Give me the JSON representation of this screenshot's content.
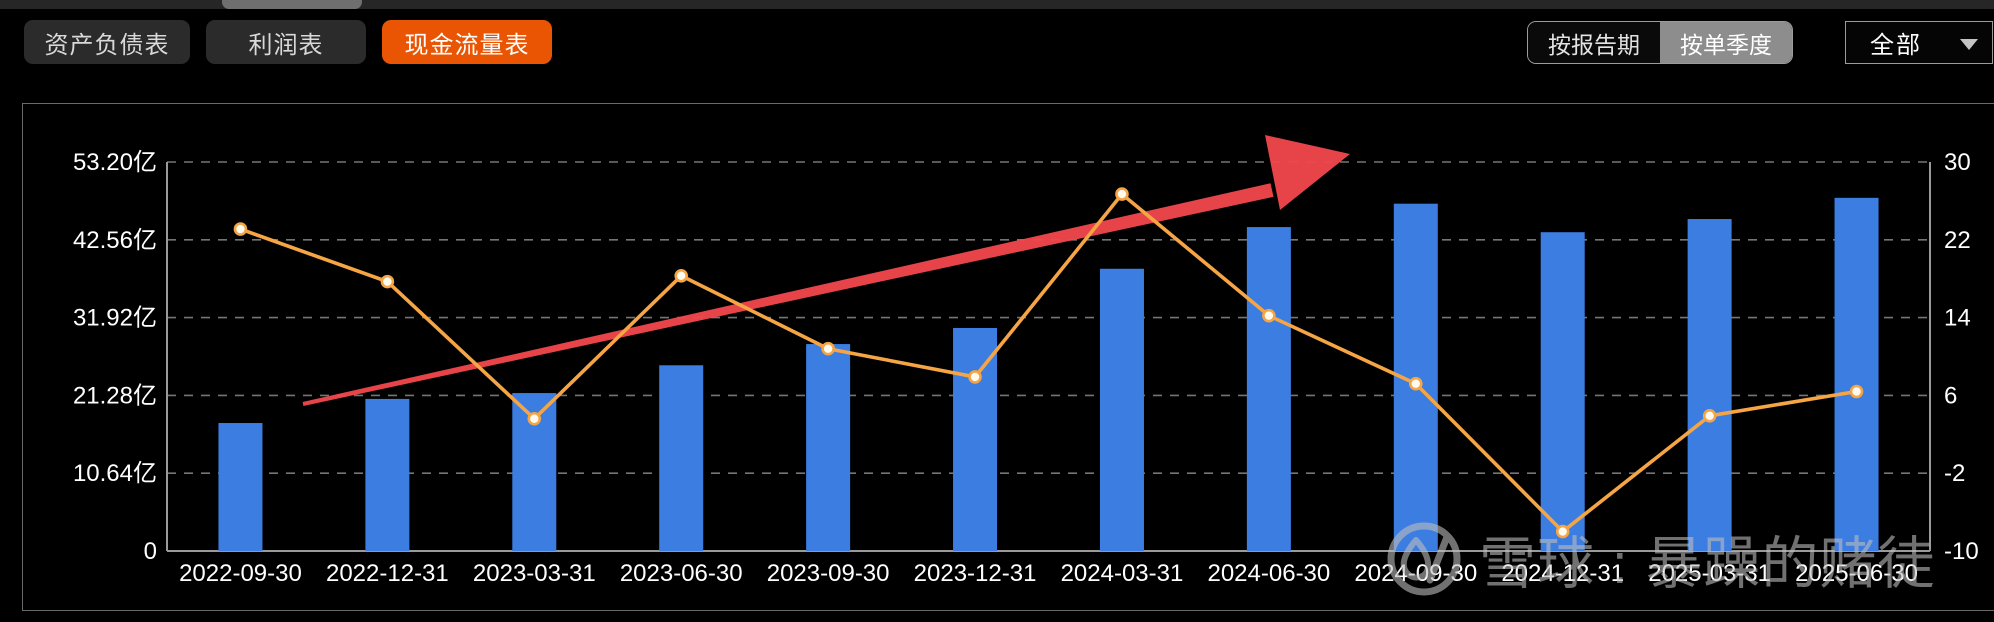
{
  "header": {
    "tabs": [
      {
        "label": "资产负债表",
        "active": false
      },
      {
        "label": "利润表",
        "active": false
      },
      {
        "label": "现金流量表",
        "active": true
      }
    ],
    "period_toggle": {
      "options": [
        "按报告期",
        "按单季度"
      ],
      "selected": "按单季度"
    },
    "range_select": {
      "value": "全部"
    }
  },
  "watermark": {
    "text": "雪球 : 暴躁的赌徒"
  },
  "colors": {
    "accent_orange": "#ea5504",
    "bar_blue": "#3c7de2",
    "line_orange": "#f5a544",
    "marker_fill": "#fffaef",
    "arrow_red": "#f2484d",
    "axis_text": "#ffffff",
    "grid_gray": "#8a8a8a",
    "watermark_gray": "#bdbdbd"
  },
  "chart_data": {
    "type": "bar",
    "categories": [
      "2022-09-30",
      "2022-12-31",
      "2023-03-31",
      "2023-06-30",
      "2023-09-30",
      "2023-12-31",
      "2024-03-31",
      "2024-06-30",
      "2024-09-30",
      "2024-12-31",
      "2025-03-31",
      "2025-06-30"
    ],
    "series": [
      {
        "name": "bars",
        "type": "bar",
        "axis": "left",
        "unit": "亿",
        "values": [
          17.5,
          20.8,
          21.6,
          25.4,
          28.3,
          30.5,
          38.6,
          44.3,
          47.5,
          43.6,
          45.4,
          48.3
        ]
      },
      {
        "name": "line",
        "type": "line",
        "axis": "right",
        "values": [
          23.1,
          17.7,
          3.6,
          18.3,
          10.8,
          7.9,
          26.7,
          14.2,
          7.2,
          -8.0,
          3.9,
          6.4
        ]
      }
    ],
    "left_axis": {
      "tick_labels": [
        "53.20亿",
        "42.56亿",
        "31.92亿",
        "21.28亿",
        "10.64亿",
        "0"
      ],
      "min": 0,
      "max": 53.2
    },
    "right_axis": {
      "tick_labels": [
        "30",
        "22",
        "14",
        "6",
        "-2",
        "-10"
      ],
      "min": -10,
      "max": 30
    },
    "grid": "horizontal-dashed",
    "legend_position": "none",
    "annotations": [
      {
        "type": "arrow",
        "direction": "up-right",
        "color": "#f2484d"
      }
    ]
  }
}
